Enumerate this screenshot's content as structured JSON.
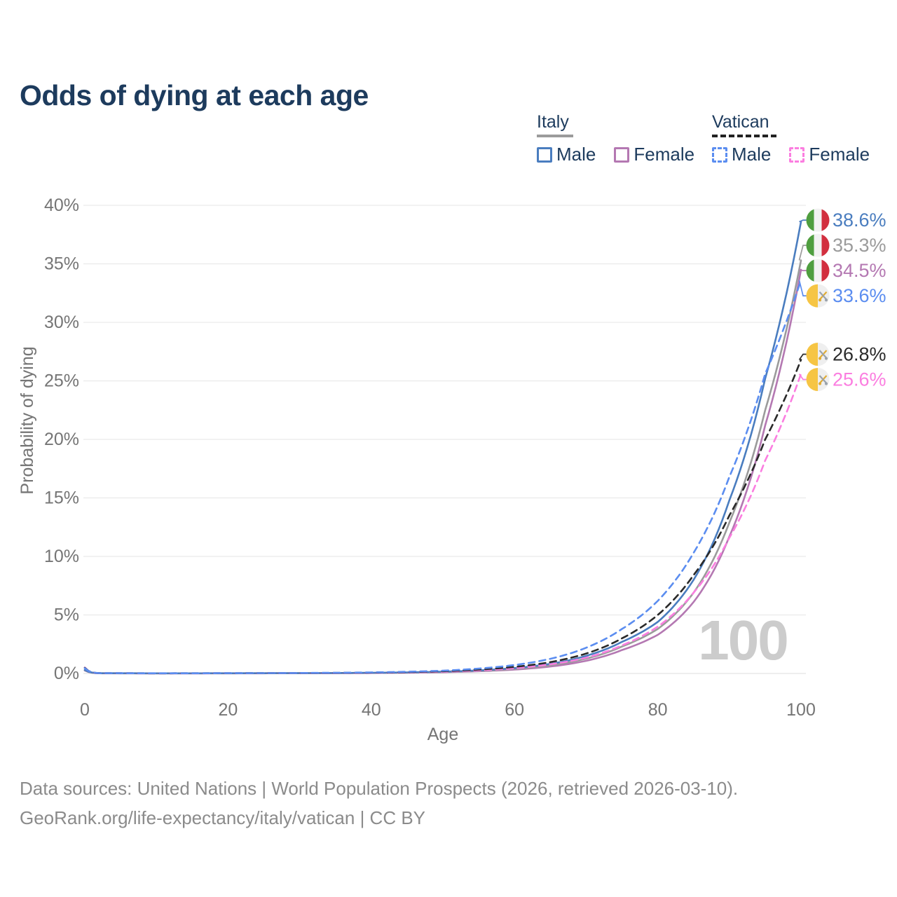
{
  "title": "Odds of dying at each age",
  "legend": {
    "groups": [
      {
        "label": "Italy",
        "line_style": "solid",
        "line_color": "#9b9b9b",
        "items": [
          {
            "label": "Male",
            "color": "#4a7dbf",
            "style": "solid"
          },
          {
            "label": "Female",
            "color": "#b478b2",
            "style": "solid"
          }
        ]
      },
      {
        "label": "Vatican",
        "line_style": "dashed",
        "line_color": "#222222",
        "items": [
          {
            "label": "Male",
            "color": "#5b8df0",
            "style": "dashed"
          },
          {
            "label": "Female",
            "color": "#fb7ee0",
            "style": "dashed"
          }
        ]
      }
    ]
  },
  "watermark": "100",
  "footer": {
    "line1": "Data sources: United Nations | World Population Prospects (2026, retrieved 2026-03-10).",
    "line2": "GeoRank.org/life-expectancy/italy/vatican | CC BY"
  },
  "colors": {
    "title_text": "#1d3b5d",
    "axis_text": "#757575",
    "gridline": "#eaeaea",
    "baseline": "#e3e3e3",
    "watermark": "#cccccc",
    "footer_text": "#8b8b8b",
    "italy_flag_green": "#4f9e3f",
    "italy_flag_white": "#f2f2f2",
    "italy_flag_red": "#d22f3f",
    "vatican_flag_yellow": "#f6c544",
    "vatican_flag_white": "#efefef",
    "vatican_key_gold": "#dfab34",
    "vatican_key_gray": "#9aa2ab"
  },
  "chart_data": {
    "type": "line",
    "title": "Odds of dying at each age",
    "xlabel": "Age",
    "ylabel": "Probability of dying",
    "xlim": [
      0,
      100
    ],
    "ylim": [
      0,
      40
    ],
    "grid": "horizontal",
    "x_ticks": [
      0,
      20,
      40,
      60,
      80,
      100
    ],
    "y_ticks": [
      {
        "value": 0,
        "label": "0%"
      },
      {
        "value": 5,
        "label": "5%"
      },
      {
        "value": 10,
        "label": "10%"
      },
      {
        "value": 15,
        "label": "15%"
      },
      {
        "value": 20,
        "label": "20%"
      },
      {
        "value": 25,
        "label": "25%"
      },
      {
        "value": 30,
        "label": "30%"
      },
      {
        "value": 35,
        "label": "35%"
      },
      {
        "value": 40,
        "label": "40%"
      }
    ],
    "age_annotation": "100",
    "series": [
      {
        "id": "italy-male",
        "name": "Italy Male",
        "country": "Italy",
        "sex": "Male",
        "color": "#4a7dbf",
        "dashed": false,
        "flag": "italy",
        "end_value": 38.6,
        "end_label": "38.6%",
        "points": [
          [
            0,
            0.3
          ],
          [
            2,
            0.02
          ],
          [
            10,
            0.013
          ],
          [
            20,
            0.016
          ],
          [
            30,
            0.026
          ],
          [
            40,
            0.055
          ],
          [
            50,
            0.15
          ],
          [
            55,
            0.26
          ],
          [
            60,
            0.46
          ],
          [
            65,
            0.82
          ],
          [
            70,
            1.5
          ],
          [
            75,
            2.7
          ],
          [
            80,
            4.4
          ],
          [
            85,
            8.0
          ],
          [
            90,
            14.8
          ],
          [
            95,
            25.2
          ],
          [
            100,
            38.6
          ]
        ]
      },
      {
        "id": "italy-total",
        "name": "Italy Both sexes",
        "country": "Italy",
        "sex": "Both",
        "color": "#9b9b9b",
        "dashed": false,
        "flag": "italy",
        "end_value": 35.3,
        "end_label": "35.3%",
        "points": [
          [
            0,
            0.28
          ],
          [
            2,
            0.018
          ],
          [
            10,
            0.011
          ],
          [
            20,
            0.014
          ],
          [
            30,
            0.022
          ],
          [
            40,
            0.048
          ],
          [
            50,
            0.13
          ],
          [
            55,
            0.22
          ],
          [
            60,
            0.39
          ],
          [
            65,
            0.7
          ],
          [
            70,
            1.27
          ],
          [
            75,
            2.3
          ],
          [
            80,
            3.8
          ],
          [
            85,
            6.9
          ],
          [
            90,
            12.9
          ],
          [
            95,
            22.5
          ],
          [
            100,
            35.3
          ]
        ]
      },
      {
        "id": "italy-female",
        "name": "Italy Female",
        "country": "Italy",
        "sex": "Female",
        "color": "#b478b2",
        "dashed": false,
        "flag": "italy",
        "end_value": 34.5,
        "end_label": "34.5%",
        "points": [
          [
            0,
            0.25
          ],
          [
            2,
            0.015
          ],
          [
            10,
            0.009
          ],
          [
            20,
            0.012
          ],
          [
            30,
            0.018
          ],
          [
            40,
            0.04
          ],
          [
            50,
            0.11
          ],
          [
            55,
            0.19
          ],
          [
            60,
            0.33
          ],
          [
            65,
            0.59
          ],
          [
            70,
            1.08
          ],
          [
            75,
            2.0
          ],
          [
            80,
            3.3
          ],
          [
            85,
            6.1
          ],
          [
            90,
            11.7
          ],
          [
            95,
            21.2
          ],
          [
            100,
            34.5
          ]
        ]
      },
      {
        "id": "vatican-male",
        "name": "Vatican Male",
        "country": "Vatican",
        "sex": "Male",
        "color": "#5b8df0",
        "dashed": true,
        "flag": "vatican",
        "end_value": 33.6,
        "end_label": "33.6%",
        "points": [
          [
            0,
            0.45
          ],
          [
            2,
            0.025
          ],
          [
            10,
            0.016
          ],
          [
            20,
            0.022
          ],
          [
            30,
            0.04
          ],
          [
            40,
            0.09
          ],
          [
            50,
            0.24
          ],
          [
            55,
            0.42
          ],
          [
            60,
            0.72
          ],
          [
            65,
            1.25
          ],
          [
            70,
            2.2
          ],
          [
            75,
            3.8
          ],
          [
            80,
            6.2
          ],
          [
            85,
            10.3
          ],
          [
            90,
            16.8
          ],
          [
            95,
            25.6
          ],
          [
            100,
            33.6
          ]
        ]
      },
      {
        "id": "vatican-total",
        "name": "Vatican Both sexes",
        "country": "Vatican",
        "sex": "Both",
        "color": "#2a2a2a",
        "dashed": true,
        "flag": "vatican",
        "end_value": 26.8,
        "end_label": "26.8%",
        "points": [
          [
            0,
            0.48
          ],
          [
            2,
            0.022
          ],
          [
            10,
            0.014
          ],
          [
            20,
            0.019
          ],
          [
            30,
            0.032
          ],
          [
            40,
            0.07
          ],
          [
            50,
            0.19
          ],
          [
            55,
            0.33
          ],
          [
            60,
            0.56
          ],
          [
            65,
            0.97
          ],
          [
            70,
            1.7
          ],
          [
            75,
            3.0
          ],
          [
            80,
            5.0
          ],
          [
            85,
            8.4
          ],
          [
            90,
            13.5
          ],
          [
            95,
            20.0
          ],
          [
            100,
            26.8
          ]
        ]
      },
      {
        "id": "vatican-female",
        "name": "Vatican Female",
        "country": "Vatican",
        "sex": "Female",
        "color": "#fb7ee0",
        "dashed": true,
        "flag": "vatican",
        "end_value": 25.6,
        "end_label": "25.6%",
        "points": [
          [
            0,
            0.5
          ],
          [
            2,
            0.02
          ],
          [
            10,
            0.012
          ],
          [
            20,
            0.016
          ],
          [
            30,
            0.026
          ],
          [
            40,
            0.055
          ],
          [
            50,
            0.15
          ],
          [
            55,
            0.26
          ],
          [
            60,
            0.45
          ],
          [
            65,
            0.78
          ],
          [
            70,
            1.35
          ],
          [
            75,
            2.4
          ],
          [
            80,
            4.0
          ],
          [
            85,
            6.9
          ],
          [
            90,
            11.6
          ],
          [
            95,
            18.2
          ],
          [
            100,
            25.6
          ]
        ]
      }
    ]
  }
}
